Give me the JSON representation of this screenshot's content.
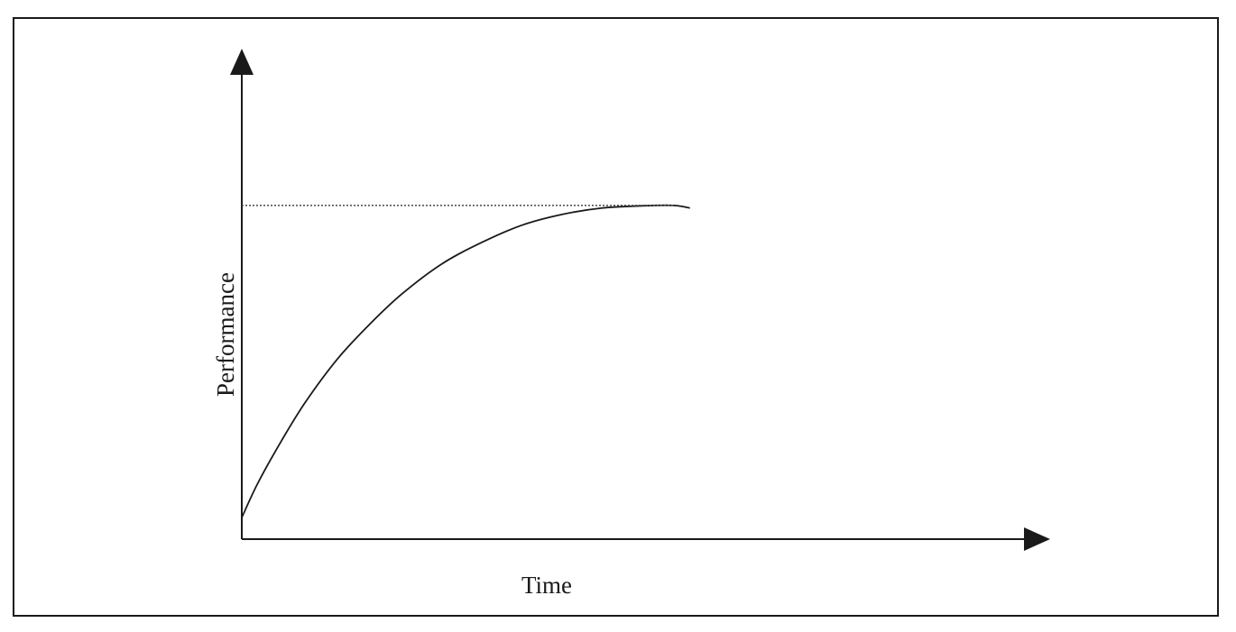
{
  "chart_data": {
    "type": "line",
    "title": "",
    "xlabel": "Time",
    "ylabel": "Performance",
    "ylim": [
      0,
      1
    ],
    "xlim": [
      0,
      1
    ],
    "grid": false,
    "axis_ticks": false,
    "series": [
      {
        "style": "solid",
        "color": "#1a1a1a",
        "x": [
          0,
          0.02,
          0.05,
          0.08,
          0.12,
          0.16,
          0.2,
          0.25,
          0.3,
          0.35,
          0.4,
          0.45,
          0.5,
          0.54,
          0.56
        ],
        "y": [
          0.05,
          0.13,
          0.23,
          0.32,
          0.42,
          0.5,
          0.57,
          0.64,
          0.69,
          0.73,
          0.755,
          0.77,
          0.775,
          0.776,
          0.77
        ]
      },
      {
        "style": "dotted",
        "color": "#555555",
        "x": [
          0,
          0.54
        ],
        "y": [
          0.776,
          0.776
        ]
      }
    ]
  }
}
